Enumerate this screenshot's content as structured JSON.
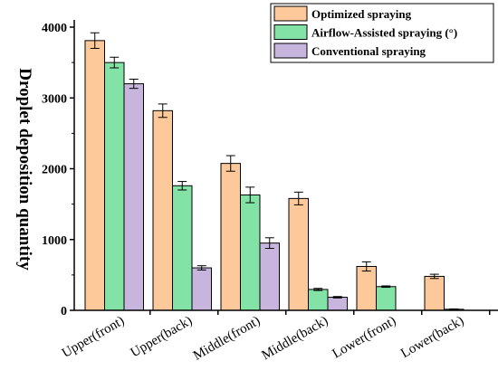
{
  "chart_data": {
    "type": "bar",
    "ylabel": "Droplet deposition quantity",
    "xlabel": "",
    "title": "",
    "ylim": [
      0,
      4000
    ],
    "yticks": [
      0,
      1000,
      2000,
      3000,
      4000
    ],
    "grid": false,
    "legend_position": "top-right",
    "error_bars": true,
    "categories": [
      "Upper(front)",
      "Upper(back)",
      "Middle(front)",
      "Middle(back)",
      "Lower(front)",
      "Lower(back)"
    ],
    "series": [
      {
        "name": "Optimized spraying",
        "color": "#FDC89A",
        "values": [
          3810,
          2820,
          2075,
          1580,
          620,
          480
        ],
        "errors": [
          110,
          95,
          110,
          90,
          65,
          30
        ]
      },
      {
        "name": "Airflow-Assisted spraying (°)",
        "color": "#83E3A6",
        "values": [
          3500,
          1760,
          1630,
          295,
          335,
          15
        ],
        "errors": [
          75,
          60,
          110,
          15,
          10,
          5
        ]
      },
      {
        "name": "Conventional spraying",
        "color": "#C7B5DE",
        "values": [
          3200,
          600,
          950,
          185,
          0,
          0
        ],
        "errors": [
          65,
          30,
          75,
          10,
          0,
          0
        ]
      }
    ]
  }
}
